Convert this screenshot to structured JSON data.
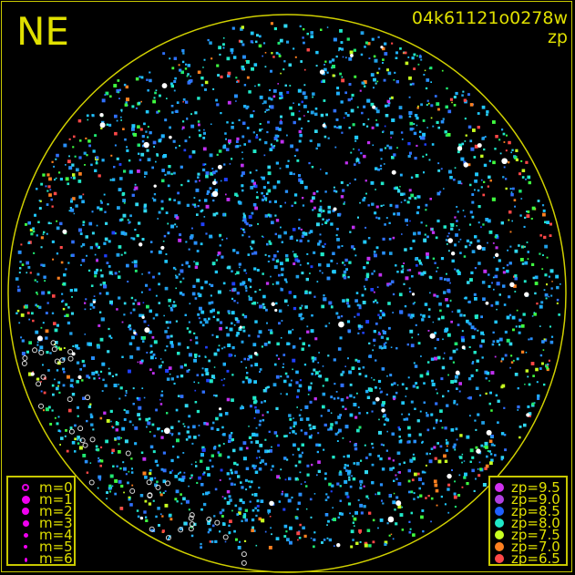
{
  "header": {
    "direction": "NE",
    "title": "04k61121o0278w",
    "subtitle": "zp"
  },
  "colors": {
    "frame": "#c8c800",
    "text": "#e0e000",
    "background": "#000000",
    "bright_star": "#ffffff"
  },
  "chart_data": {
    "type": "scatter",
    "legend_placement": [
      "bottom-left",
      "bottom-right"
    ],
    "magnitude_legend": [
      {
        "label": "m=0",
        "style": "ring"
      },
      {
        "label": "m=1",
        "style": "dot"
      },
      {
        "label": "m=2",
        "style": "dot"
      },
      {
        "label": "m=3",
        "style": "dot"
      },
      {
        "label": "m=4",
        "style": "dot"
      },
      {
        "label": "m=5",
        "style": "dot"
      },
      {
        "label": "m=6",
        "style": "dot"
      }
    ],
    "zp_legend": [
      {
        "label": "zp=9.5",
        "value": 9.5,
        "color": "#d030f0"
      },
      {
        "label": "zp=9.0",
        "value": 9.0,
        "color": "#b040e0"
      },
      {
        "label": "zp=8.5",
        "value": 8.5,
        "color": "#2060ff"
      },
      {
        "label": "zp=8.0",
        "value": 8.0,
        "color": "#20e8c8"
      },
      {
        "label": "zp=7.5",
        "value": 7.5,
        "color": "#c8ff20"
      },
      {
        "label": "zp=7.0",
        "value": 7.0,
        "color": "#ff8020"
      },
      {
        "label": "zp=6.5",
        "value": 6.5,
        "color": "#ff4848"
      }
    ]
  }
}
